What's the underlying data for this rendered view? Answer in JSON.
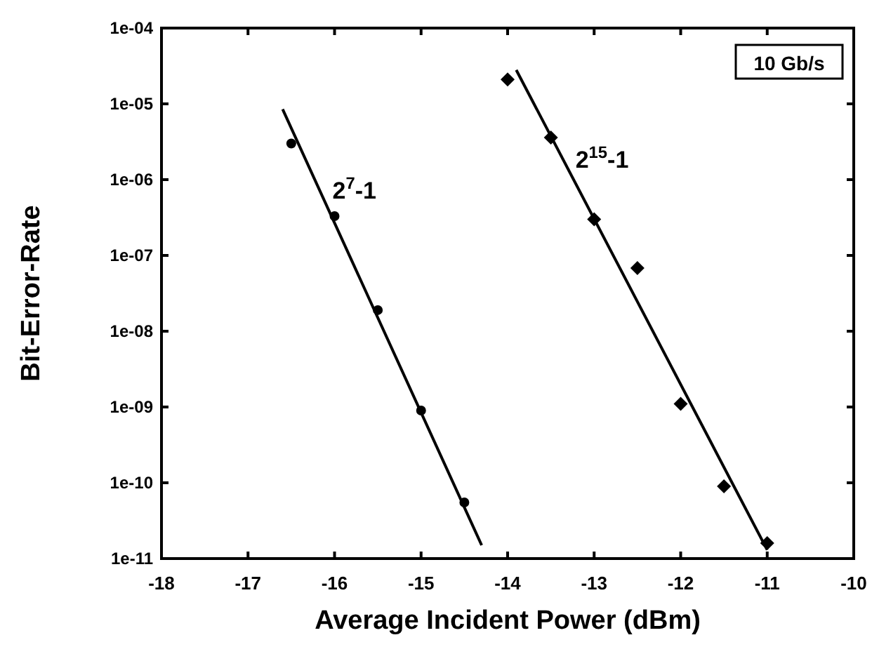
{
  "chart_data": {
    "type": "scatter",
    "xlabel": "Average Incident Power (dBm)",
    "ylabel": "Bit-Error-Rate",
    "log": "y",
    "xlim": [
      -18,
      -10
    ],
    "xticks": [
      -18,
      -17,
      -16,
      -15,
      -14,
      -13,
      -12,
      -11,
      -10
    ],
    "ylim": [
      1e-11,
      0.0001
    ],
    "yticks": [
      {
        "value": 1e-11,
        "label": "1e-11"
      },
      {
        "value": 1e-10,
        "label": "1e-10"
      },
      {
        "value": 1e-09,
        "label": "1e-09"
      },
      {
        "value": 1e-08,
        "label": "1e-08"
      },
      {
        "value": 1e-07,
        "label": "1e-07"
      },
      {
        "value": 1e-06,
        "label": "1e-06"
      },
      {
        "value": 1e-05,
        "label": "1e-05"
      },
      {
        "value": 0.0001,
        "label": "1e-04"
      }
    ],
    "grid": false,
    "annotations": [
      "10 Gb/s"
    ],
    "series": [
      {
        "marker": "circle",
        "color": "#000000",
        "x": [
          -16.5,
          -16,
          -15.5,
          -15,
          -14.5
        ],
        "values": [
          3e-06,
          3.3e-07,
          1.9e-08,
          9e-10,
          5.5e-11
        ]
      },
      {
        "type": "line",
        "name": "2$^{7}$-1",
        "color": "#000000",
        "x": [
          -16.6,
          -14.3
        ],
        "values": [
          8.5e-06,
          1.5e-11
        ]
      },
      {
        "marker": "diamond",
        "color": "#000000",
        "x": [
          -14,
          -13.5,
          -13,
          -12.5,
          -12,
          -11.5,
          -11
        ],
        "values": [
          2.1e-05,
          3.6e-06,
          3e-07,
          6.8e-08,
          1.1e-09,
          9e-11,
          1.6e-11
        ]
      },
      {
        "type": "line",
        "name": "2$^{15}$-1",
        "color": "#000000",
        "x": [
          -13.9,
          -11
        ],
        "values": [
          2.8e-05,
          1.3e-11
        ]
      }
    ]
  }
}
